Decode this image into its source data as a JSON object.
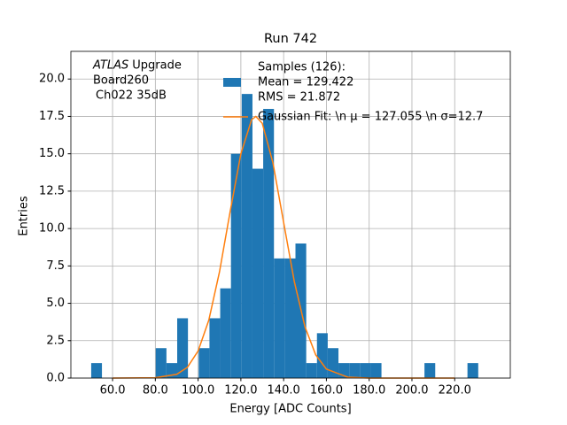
{
  "chart_data": {
    "type": "histogram",
    "title": "Run 742",
    "xlabel": "Energy [ADC Counts]",
    "ylabel": "Entries",
    "annotation": [
      "ATLAS",
      "Upgrade",
      "Board260",
      "Ch022 35dB"
    ],
    "bins": [
      50,
      55.03,
      60.06,
      65.08,
      70.11,
      75.14,
      80.17,
      85.19,
      90.22,
      95.25,
      100.28,
      105.31,
      110.33,
      115.36,
      120.39,
      125.42,
      130.44,
      135.47,
      140.5,
      145.53,
      150.56,
      155.58,
      160.61,
      165.64,
      170.67,
      175.69,
      180.72,
      185.75,
      190.78,
      195.81,
      200.83,
      205.86,
      210.89,
      215.92,
      220.94,
      225.97,
      231
    ],
    "series": [
      {
        "name": [
          "Samples (126):",
          " Mean = 129.422",
          " RMS = 21.872"
        ],
        "color": "#1f77b4",
        "values": [
          1,
          0,
          0,
          0,
          0,
          0,
          2,
          1,
          4,
          0,
          2,
          4,
          6,
          15,
          19,
          14,
          18,
          8,
          8,
          9,
          1,
          3,
          2,
          1,
          1,
          1,
          1,
          0,
          0,
          0,
          0,
          1,
          0,
          0,
          0,
          1
        ]
      },
      {
        "type": "line",
        "name": "Gaussian Fit: \\n μ = 127.055 \\n σ=12.7",
        "color": "#ff7f0e",
        "x": [
          60,
          80,
          90,
          95,
          100,
          105,
          110,
          115,
          120,
          125,
          127,
          130,
          135,
          140,
          145,
          150,
          155,
          160,
          170,
          180,
          220
        ],
        "values": [
          0,
          0.02,
          0.25,
          0.72,
          1.81,
          3.87,
          7.1,
          11.15,
          15.0,
          17.27,
          17.5,
          17.04,
          14.39,
          10.41,
          6.45,
          3.42,
          1.55,
          0.6,
          0.06,
          0,
          0
        ]
      }
    ],
    "xlim": [
      40.5,
      246
    ],
    "ylim": [
      0,
      21.85
    ],
    "xticks": [
      {
        "value": 60,
        "label": "60.0"
      },
      {
        "value": 80,
        "label": "80.0"
      },
      {
        "value": 100,
        "label": "100.0"
      },
      {
        "value": 120,
        "label": "120.0"
      },
      {
        "value": 140,
        "label": "140.0"
      },
      {
        "value": 160,
        "label": "160.0"
      },
      {
        "value": 180,
        "label": "180.0"
      },
      {
        "value": 200,
        "label": "200.0"
      },
      {
        "value": 220,
        "label": "220.0"
      }
    ],
    "yticks": [
      {
        "value": 0,
        "label": "0.0"
      },
      {
        "value": 2.5,
        "label": "2.5"
      },
      {
        "value": 5,
        "label": "5.0"
      },
      {
        "value": 7.5,
        "label": "7.5"
      },
      {
        "value": 10,
        "label": "10.0"
      },
      {
        "value": 12.5,
        "label": "12.5"
      },
      {
        "value": 15,
        "label": "15.0"
      },
      {
        "value": 17.5,
        "label": "17.5"
      },
      {
        "value": 20,
        "label": "20.0"
      }
    ],
    "grid": true
  }
}
